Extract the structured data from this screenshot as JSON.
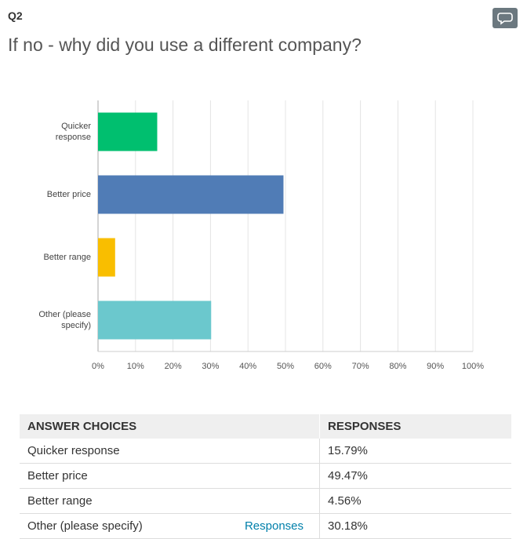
{
  "header": {
    "label": "Q2",
    "title": "If no - why did you use a different company?"
  },
  "chart_data": {
    "type": "bar",
    "orientation": "horizontal",
    "categories": [
      "Quicker response",
      "Better price",
      "Better range",
      "Other (please specify)"
    ],
    "values": [
      15.79,
      49.47,
      4.56,
      30.18
    ],
    "colors": [
      "#00bf6f",
      "#507cb6",
      "#f9be00",
      "#6bc8cd"
    ],
    "xlim": [
      0,
      100
    ],
    "xticks": [
      {
        "value": 0,
        "label": "0%"
      },
      {
        "value": 10,
        "label": "10%"
      },
      {
        "value": 20,
        "label": "20%"
      },
      {
        "value": 30,
        "label": "30%"
      },
      {
        "value": 40,
        "label": "40%"
      },
      {
        "value": 50,
        "label": "50%"
      },
      {
        "value": 60,
        "label": "60%"
      },
      {
        "value": 70,
        "label": "70%"
      },
      {
        "value": 80,
        "label": "80%"
      },
      {
        "value": 90,
        "label": "90%"
      },
      {
        "value": 100,
        "label": "100%"
      }
    ],
    "grid": true
  },
  "table": {
    "headers": [
      "ANSWER CHOICES",
      "RESPONSES"
    ],
    "rows": [
      [
        "Quicker response",
        "15.79%"
      ],
      [
        "Better price",
        "49.47%"
      ],
      [
        "Better range",
        "4.56%"
      ],
      [
        "Other (please specify)",
        "30.18%"
      ]
    ],
    "link": "Responses"
  }
}
